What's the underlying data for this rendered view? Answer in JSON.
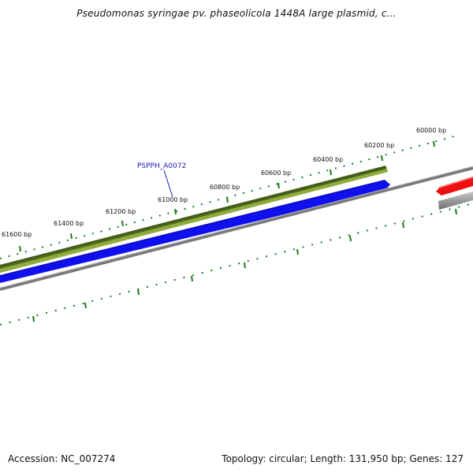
{
  "header": {
    "title": "Pseudomonas syringae pv. phaseolicola 1448A large plasmid, c..."
  },
  "footer": {
    "accession": "Accession: NC_007274",
    "summary": "Topology: circular; Length: 131,950 bp; Genes: 127"
  },
  "map": {
    "tick_labels": [
      "61600 bp",
      "61400 bp",
      "61200 bp",
      "61000 bp",
      "60800 bp",
      "60600 bp",
      "60400 bp",
      "60200 bp",
      "60000 bp"
    ],
    "gene_label": "PSPPH_A0072",
    "colors": {
      "olive_track": "#6b8e23",
      "blue_track": "#1010ee",
      "red_feature": "#ee1010",
      "gray_backbone": "#808080",
      "tick": "#1e7a1e"
    }
  }
}
